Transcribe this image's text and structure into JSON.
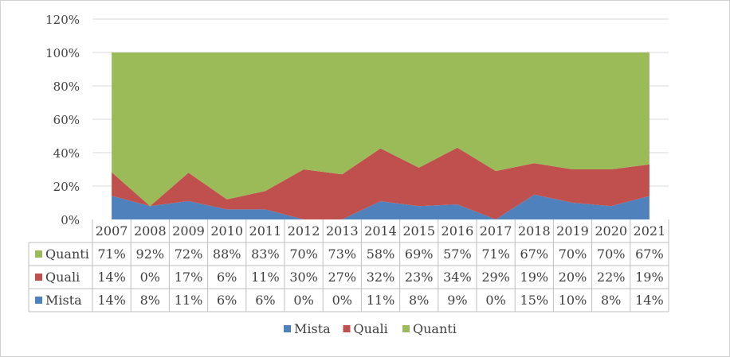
{
  "chart_data": {
    "type": "area",
    "stacked": true,
    "normalized": true,
    "categories": [
      "2007",
      "2008",
      "2009",
      "2010",
      "2011",
      "2012",
      "2013",
      "2014",
      "2015",
      "2016",
      "2017",
      "2018",
      "2019",
      "2020",
      "2021"
    ],
    "series": [
      {
        "name": "Mista",
        "color": "#4f81bd",
        "values": [
          "14%",
          "8%",
          "11%",
          "6%",
          "6%",
          "0%",
          "0%",
          "11%",
          "8%",
          "9%",
          "0%",
          "15%",
          "10%",
          "8%",
          "14%"
        ]
      },
      {
        "name": "Quali",
        "color": "#c0504d",
        "values": [
          "14%",
          "0%",
          "17%",
          "6%",
          "11%",
          "30%",
          "27%",
          "32%",
          "23%",
          "34%",
          "29%",
          "19%",
          "20%",
          "22%",
          "19%"
        ]
      },
      {
        "name": "Quanti",
        "color": "#9bbb59",
        "values": [
          "71%",
          "92%",
          "72%",
          "88%",
          "83%",
          "70%",
          "73%",
          "58%",
          "69%",
          "57%",
          "71%",
          "67%",
          "70%",
          "70%",
          "67%"
        ]
      }
    ],
    "y_ticks": [
      "0%",
      "20%",
      "40%",
      "60%",
      "80%",
      "100%",
      "120%"
    ],
    "ylim": [
      0,
      120
    ],
    "grid": true,
    "data_table": true,
    "legend": "bottom"
  }
}
